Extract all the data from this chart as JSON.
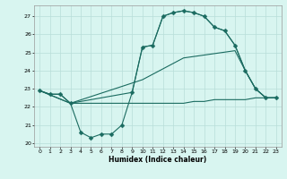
{
  "title": "",
  "xlabel": "Humidex (Indice chaleur)",
  "bg_color": "#d8f5f0",
  "line_color": "#1a6b60",
  "grid_color": "#b8ddd8",
  "xlim": [
    -0.5,
    23.5
  ],
  "ylim": [
    19.8,
    27.6
  ],
  "xticks": [
    0,
    1,
    2,
    3,
    4,
    5,
    6,
    7,
    8,
    9,
    10,
    11,
    12,
    13,
    14,
    15,
    16,
    17,
    18,
    19,
    20,
    21,
    22,
    23
  ],
  "yticks": [
    20,
    21,
    22,
    23,
    24,
    25,
    26,
    27
  ],
  "line_flat_x": [
    0,
    1,
    2,
    3,
    4,
    5,
    6,
    7,
    8,
    9,
    10,
    11,
    12,
    13,
    14,
    15,
    16,
    17,
    18,
    19,
    20,
    21,
    22,
    23
  ],
  "line_flat_y": [
    22.9,
    22.7,
    22.7,
    22.2,
    22.2,
    22.2,
    22.2,
    22.2,
    22.2,
    22.2,
    22.2,
    22.2,
    22.2,
    22.2,
    22.2,
    22.3,
    22.3,
    22.4,
    22.4,
    22.4,
    22.4,
    22.5,
    22.5,
    22.5
  ],
  "line_main_x": [
    0,
    1,
    2,
    3,
    4,
    5,
    6,
    7,
    8,
    9,
    10,
    11,
    12,
    13,
    14,
    15,
    16,
    17,
    18,
    19,
    20,
    21,
    22,
    23
  ],
  "line_main_y": [
    22.9,
    22.7,
    22.7,
    22.2,
    20.6,
    20.3,
    20.5,
    20.5,
    21.0,
    22.8,
    25.3,
    25.4,
    27.0,
    27.2,
    27.3,
    27.2,
    27.0,
    26.4,
    26.2,
    25.4,
    24.0,
    23.0,
    22.5,
    22.5
  ],
  "line_upper_x": [
    0,
    3,
    9,
    10,
    11,
    12,
    13,
    14,
    15,
    16,
    17,
    18,
    19,
    20,
    21,
    22,
    23
  ],
  "line_upper_y": [
    22.9,
    22.2,
    22.8,
    25.3,
    25.4,
    27.0,
    27.2,
    27.3,
    27.2,
    27.0,
    26.4,
    26.2,
    25.4,
    24.0,
    23.0,
    22.5,
    22.5
  ],
  "line_lower_x": [
    0,
    3,
    10,
    14,
    19,
    20,
    21,
    22,
    23
  ],
  "line_lower_y": [
    22.9,
    22.2,
    23.5,
    24.7,
    25.1,
    24.0,
    23.0,
    22.5,
    22.5
  ]
}
